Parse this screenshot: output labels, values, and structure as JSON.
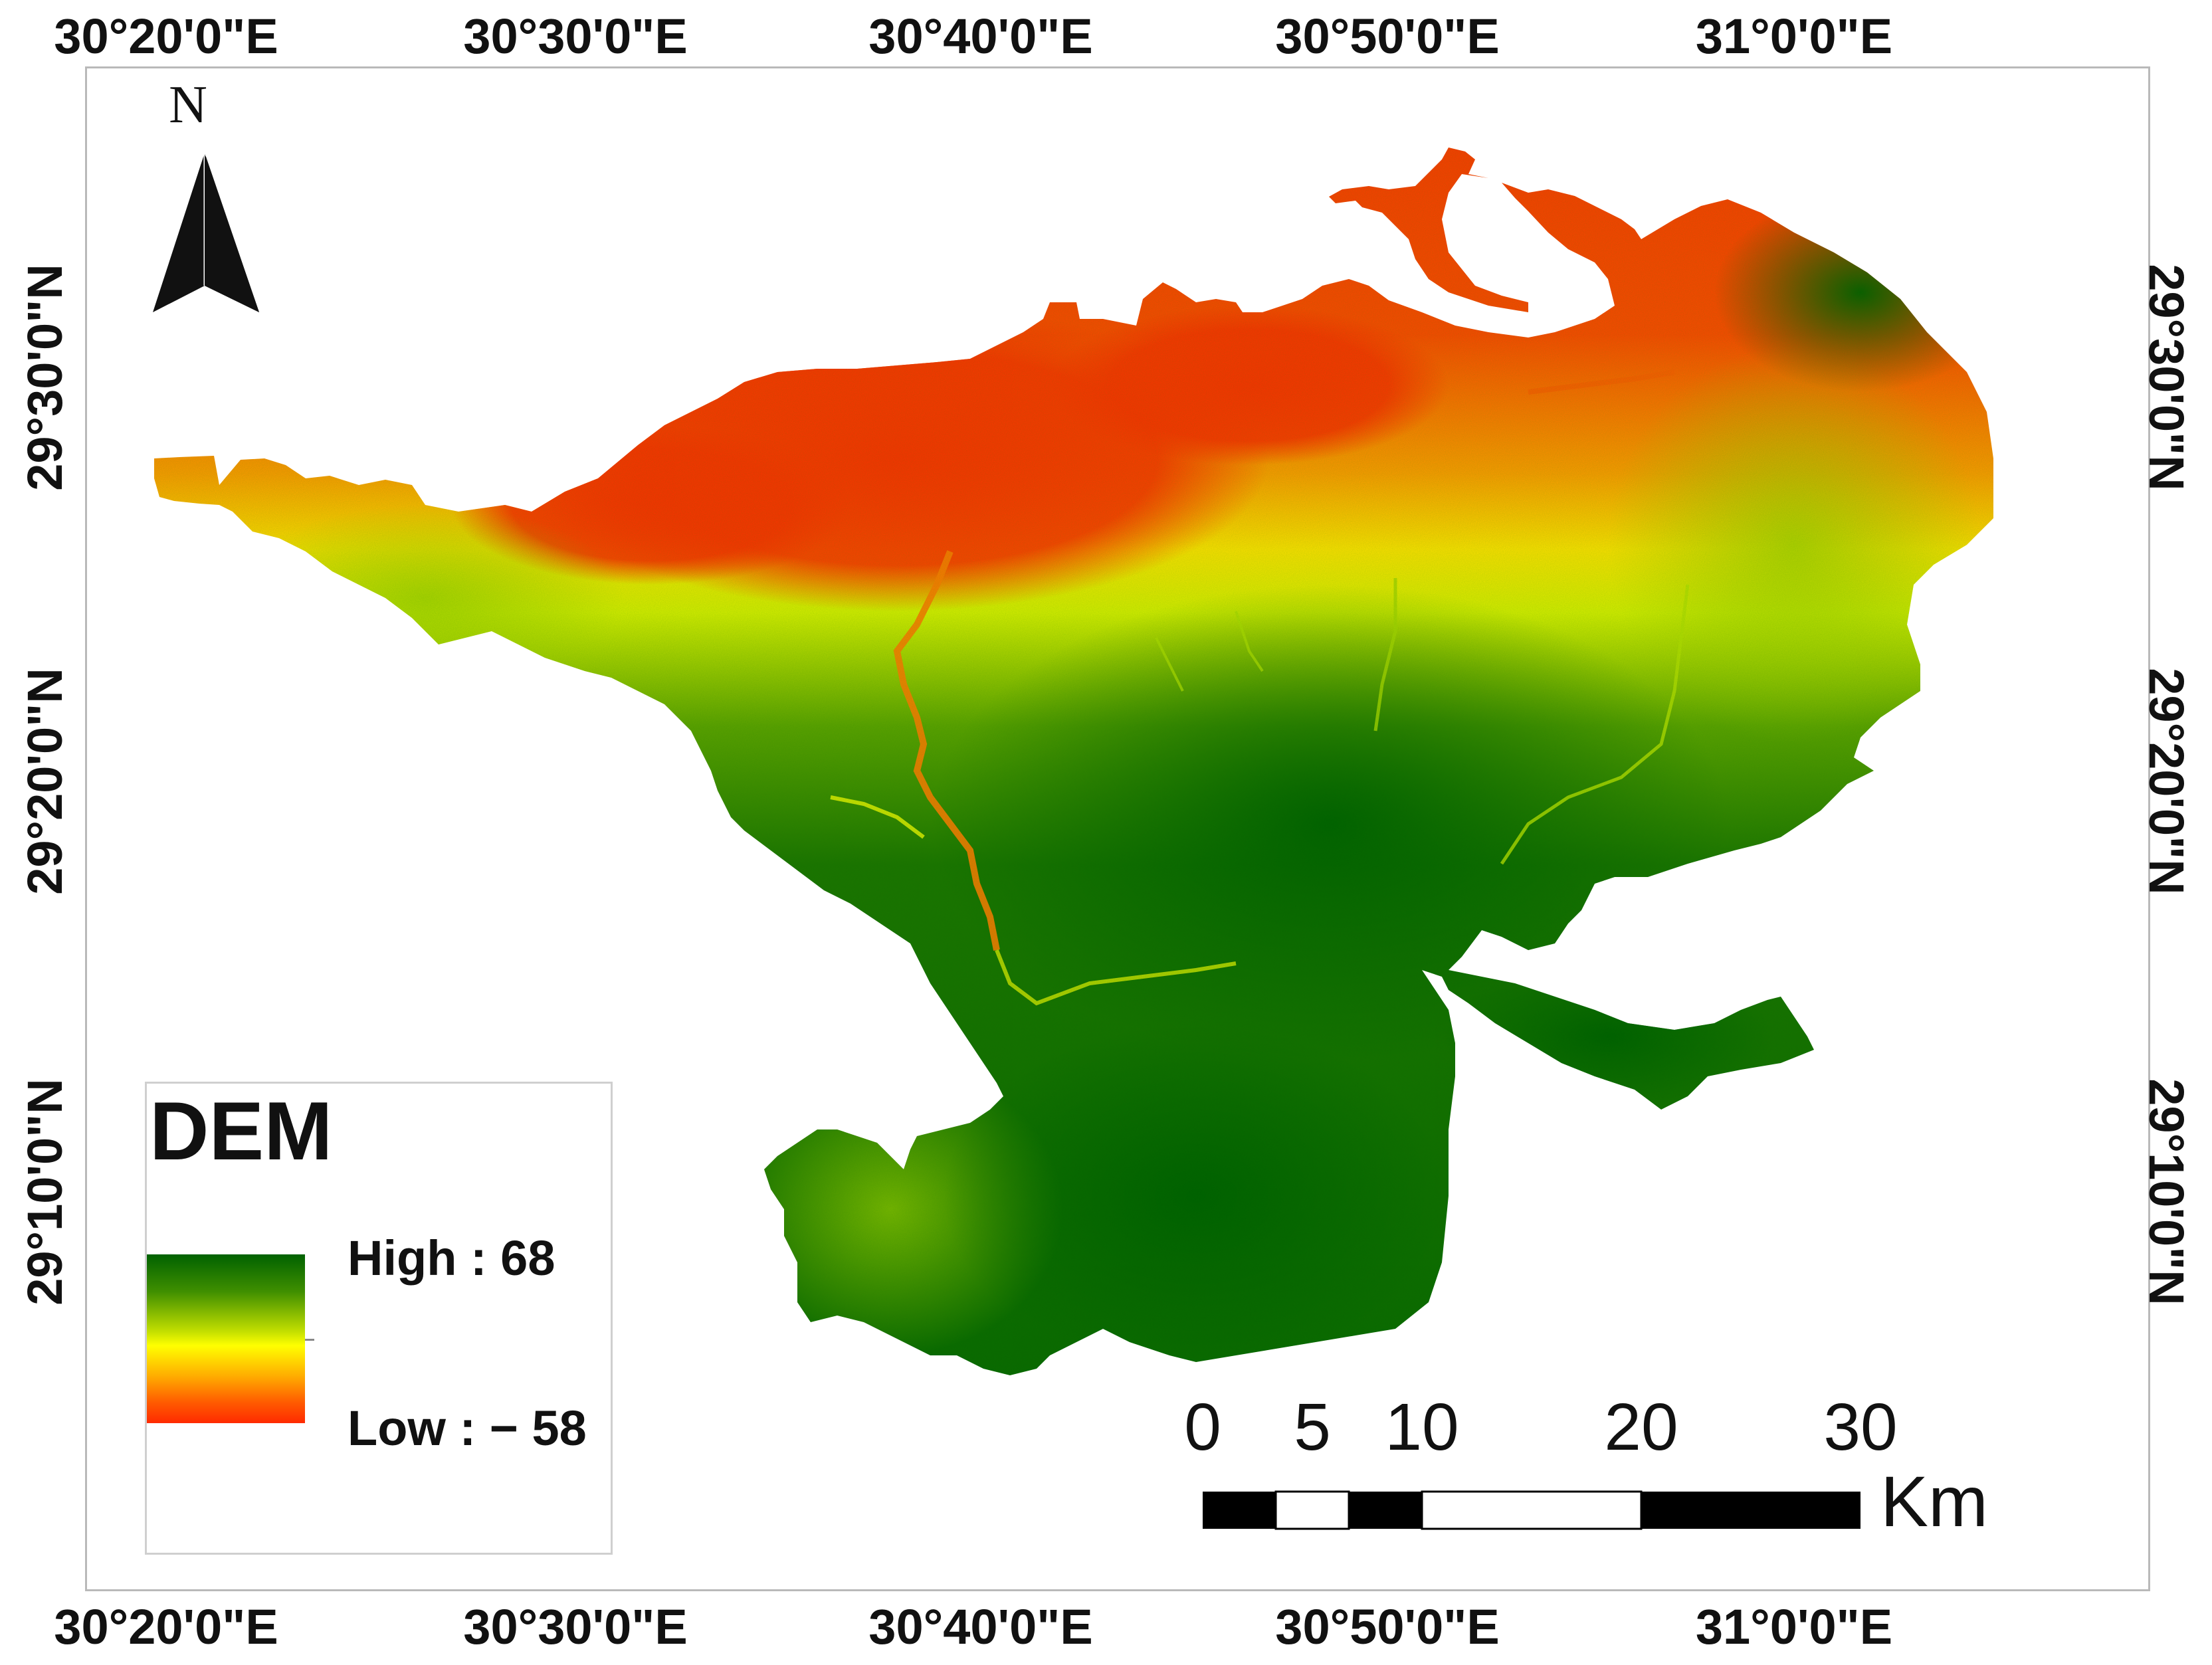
{
  "coordinates": {
    "top_labels": [
      "30°20'0\"E",
      "30°30'0\"E",
      "30°40'0\"E",
      "30°50'0\"E",
      "31°0'0\"E"
    ],
    "bottom_labels": [
      "30°20'0\"E",
      "30°30'0\"E",
      "30°40'0\"E",
      "30°50'0\"E",
      "31°0'0\"E"
    ],
    "left_labels": [
      "29°30'0\"N",
      "29°20'0\"N",
      "29°10'0\"N"
    ],
    "right_labels": [
      "29°30'0\"N",
      "29°20'0\"N",
      "29°10'0\"N"
    ]
  },
  "north_arrow": {
    "label": "N",
    "icon": "north-arrow-icon"
  },
  "legend": {
    "title": "DEM",
    "high_label": "High : 68",
    "low_label": "Low : − 58",
    "ramp_colors": [
      "#006100",
      "#3f8f00",
      "#c5e000",
      "#ffff00",
      "#ffad00",
      "#ff5a00",
      "#ff2a00"
    ]
  },
  "scale_bar": {
    "labels": [
      "0",
      "5",
      "10",
      "20",
      "30"
    ],
    "unit": "Km"
  },
  "colors": {
    "high": "#006100",
    "mid": "#ffff00",
    "low": "#ff2a00"
  }
}
